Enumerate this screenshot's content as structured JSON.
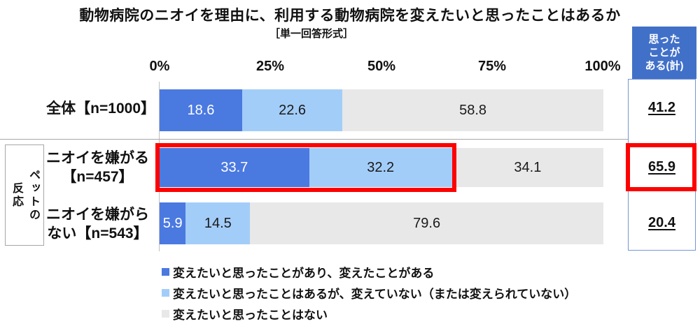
{
  "title": "動物病院のニオイを理由に、利用する動物病院を変えたいと思ったことはあるか",
  "subtitle": "［単一回答形式］",
  "axis": {
    "ticks": [
      "0%",
      "25%",
      "50%",
      "75%",
      "100%"
    ]
  },
  "group_label": "ペットの\n反応",
  "summary": {
    "header": "思った\nことが\nある(計)",
    "values": [
      "41.2",
      "65.9",
      "20.4"
    ]
  },
  "rows": [
    {
      "label": "全体【n=1000】",
      "values": [
        18.6,
        22.6,
        58.8
      ],
      "values_text": [
        "18.6",
        "22.6",
        "58.8"
      ],
      "total": "41.2",
      "highlighted": false
    },
    {
      "label": "ニオイを嫌がる\n【n=457】",
      "values": [
        33.7,
        32.2,
        34.1
      ],
      "values_text": [
        "33.7",
        "32.2",
        "34.1"
      ],
      "total": "65.9",
      "highlighted": true
    },
    {
      "label": "ニオイを嫌がら\nない【n=543】",
      "values": [
        5.9,
        14.5,
        79.6
      ],
      "values_text": [
        "5.9",
        "14.5",
        "79.6"
      ],
      "total": "20.4",
      "highlighted": false
    }
  ],
  "legend": [
    {
      "label": "変えたいと思ったことがあり、変えたことがある",
      "color": "#4a79e0"
    },
    {
      "label": "変えたいと思ったことはあるが、変えていない（または変えられていない）",
      "color": "#a3cdf9"
    },
    {
      "label": "変えたいと思ったことはない",
      "color": "#e8e8e8"
    }
  ],
  "colors": {
    "bar_dark_blue": "#4a79e0",
    "bar_light_blue": "#a3cdf9",
    "bar_gray": "#e8e8e8",
    "header_blue": "#4170c8",
    "column_border_blue": "#7396d5",
    "highlight_red": "#fe0000"
  },
  "chart_data": {
    "type": "bar",
    "orientation": "horizontal-stacked",
    "title": "動物病院のニオイを理由に、利用する動物病院を変えたいと思ったことはあるか",
    "subtitle": "［単一回答形式］",
    "categories": [
      "全体【n=1000】",
      "ニオイを嫌がる【n=457】",
      "ニオイを嫌がらない【n=543】"
    ],
    "category_group": {
      "label": "ペットの反応",
      "applies_to": [
        "ニオイを嫌がる【n=457】",
        "ニオイを嫌がらない【n=543】"
      ]
    },
    "series": [
      {
        "name": "変えたいと思ったことがあり、変えたことがある",
        "color": "#4a79e0",
        "values": [
          18.6,
          33.7,
          5.9
        ]
      },
      {
        "name": "変えたいと思ったことはあるが、変えていない（または変えられていない）",
        "color": "#a3cdf9",
        "values": [
          22.6,
          32.2,
          14.5
        ]
      },
      {
        "name": "変えたいと思ったことはない",
        "color": "#e8e8e8",
        "values": [
          58.8,
          34.1,
          79.6
        ]
      }
    ],
    "totals_column": {
      "header": "思ったことがある(計)",
      "values": [
        41.2,
        65.9,
        20.4
      ]
    },
    "xlim": [
      0,
      100
    ],
    "x_ticks": [
      "0%",
      "25%",
      "50%",
      "75%",
      "100%"
    ],
    "legend_position": "bottom",
    "grid": false,
    "annotations": "Row 'ニオイを嫌がる【n=457】' first two segments and its total 65.9 are outlined with a thick red box"
  }
}
